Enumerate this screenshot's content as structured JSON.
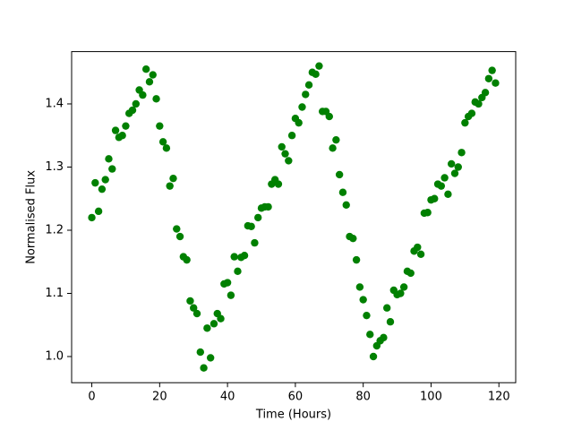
{
  "chart_data": {
    "type": "scatter",
    "xlabel": "Time (Hours)",
    "ylabel": "Normalised Flux",
    "color": "#008000",
    "x": [
      0,
      1,
      2,
      3,
      4,
      5,
      6,
      7,
      8,
      9,
      10,
      11,
      12,
      13,
      14,
      15,
      16,
      17,
      18,
      19,
      20,
      21,
      22,
      23,
      24,
      25,
      26,
      27,
      28,
      29,
      30,
      31,
      32,
      33,
      34,
      35,
      36,
      37,
      38,
      39,
      40,
      41,
      42,
      43,
      44,
      45,
      46,
      47,
      48,
      49,
      50,
      51,
      52,
      53,
      54,
      55,
      56,
      57,
      58,
      59,
      60,
      61,
      62,
      63,
      64,
      65,
      66,
      67,
      68,
      69,
      70,
      71,
      72,
      73,
      74,
      75,
      76,
      77,
      78,
      79,
      80,
      81,
      82,
      83,
      84,
      85,
      86,
      87,
      88,
      89,
      90,
      91,
      92,
      93,
      94,
      95,
      96,
      97,
      98,
      99,
      100,
      101,
      102,
      103,
      104,
      105,
      106,
      107,
      108,
      109,
      110,
      111,
      112,
      113,
      114,
      115,
      116,
      117,
      118,
      119
    ],
    "values": [
      1.22,
      1.275,
      1.23,
      1.265,
      1.28,
      1.313,
      1.297,
      1.358,
      1.347,
      1.35,
      1.365,
      1.385,
      1.39,
      1.4,
      1.422,
      1.414,
      1.455,
      1.435,
      1.446,
      1.408,
      1.365,
      1.34,
      1.33,
      1.27,
      1.282,
      1.202,
      1.19,
      1.158,
      1.153,
      1.088,
      1.077,
      1.068,
      1.007,
      0.982,
      1.045,
      0.998,
      1.052,
      1.068,
      1.06,
      1.115,
      1.117,
      1.097,
      1.158,
      1.135,
      1.157,
      1.16,
      1.207,
      1.206,
      1.18,
      1.22,
      1.235,
      1.237,
      1.237,
      1.273,
      1.28,
      1.273,
      1.332,
      1.321,
      1.31,
      1.35,
      1.377,
      1.37,
      1.395,
      1.415,
      1.43,
      1.45,
      1.447,
      1.46,
      1.388,
      1.388,
      1.38,
      1.33,
      1.343,
      1.288,
      1.26,
      1.24,
      1.19,
      1.187,
      1.153,
      1.11,
      1.09,
      1.065,
      1.035,
      1.0,
      1.017,
      1.025,
      1.03,
      1.077,
      1.055,
      1.105,
      1.098,
      1.1,
      1.11,
      1.135,
      1.132,
      1.167,
      1.173,
      1.162,
      1.227,
      1.228,
      1.248,
      1.25,
      1.273,
      1.27,
      1.283,
      1.257,
      1.305,
      1.29,
      1.3,
      1.323,
      1.37,
      1.38,
      1.385,
      1.403,
      1.4,
      1.41,
      1.418,
      1.44,
      1.453,
      1.433
    ],
    "xlim": [
      -5.95,
      124.95
    ],
    "xticks": [
      0,
      20,
      40,
      60,
      80,
      100,
      120
    ],
    "ylim": [
      0.9586,
      1.4828
    ],
    "yticks": [
      {
        "value": 1,
        "label": "1.0"
      },
      1.1,
      1.2,
      1.3,
      1.4
    ]
  }
}
